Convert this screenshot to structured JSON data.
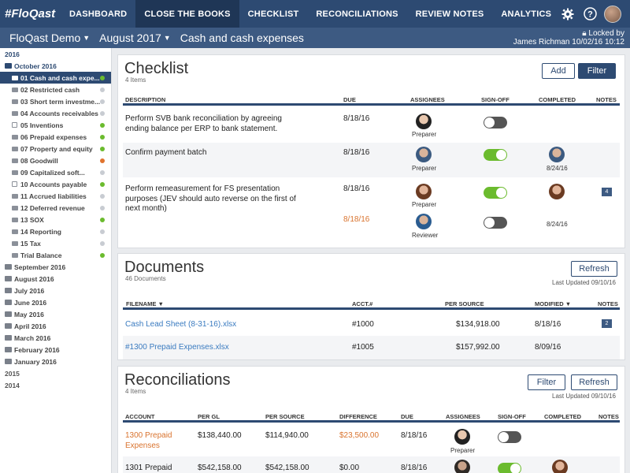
{
  "nav": {
    "logo": "#FloQast",
    "tabs": [
      "DASHBOARD",
      "CLOSE THE BOOKS",
      "CHECKLIST",
      "RECONCILIATIONS",
      "REVIEW NOTES",
      "ANALYTICS"
    ],
    "active_tab": "CLOSE THE BOOKS"
  },
  "subbar": {
    "company": "FloQast Demo",
    "period": "August 2017",
    "folder": "Cash and cash expenses",
    "locked_label": "Locked by",
    "locked_by": "James Richman 10/02/16 10:12"
  },
  "sidebar": {
    "year_current": "2016",
    "open_month": "October 2016",
    "items": [
      {
        "label": "01 Cash and cash expe...",
        "icon": "folder-icon",
        "status": "#6bbb2e"
      },
      {
        "label": "02 Restricted cash",
        "icon": "folder-icon",
        "status": "#c8ccd2"
      },
      {
        "label": "03 Short term investme...",
        "icon": "folder-icon",
        "status": "#c8ccd2"
      },
      {
        "label": "04 Accounts receivables",
        "icon": "folder-icon",
        "status": "#c8ccd2"
      },
      {
        "label": "05 Inventions",
        "icon": "lock-icon",
        "status": "#6bbb2e"
      },
      {
        "label": "06 Prepaid expenses",
        "icon": "folder-icon",
        "status": "#6bbb2e"
      },
      {
        "label": "07 Property and equity",
        "icon": "folder-icon",
        "status": "#6bbb2e"
      },
      {
        "label": "08 Goodwill",
        "icon": "folder-icon",
        "status": "#e0732e"
      },
      {
        "label": "09 Capitalized soft...",
        "icon": "folder-icon",
        "status": "#c8ccd2"
      },
      {
        "label": "10 Accounts payable",
        "icon": "lock-icon",
        "status": "#6bbb2e"
      },
      {
        "label": "11 Accrued liabilities",
        "icon": "folder-icon",
        "status": "#c8ccd2"
      },
      {
        "label": "12 Deferred revenue",
        "icon": "folder-icon",
        "status": "#c8ccd2"
      },
      {
        "label": "13 SOX",
        "icon": "folder-icon",
        "status": "#6bbb2e"
      },
      {
        "label": "14 Reporting",
        "icon": "folder-icon",
        "status": "#c8ccd2"
      },
      {
        "label": "15 Tax",
        "icon": "folder-icon",
        "status": "#c8ccd2"
      },
      {
        "label": "Trial Balance",
        "icon": "folder-icon",
        "status": "#6bbb2e"
      }
    ],
    "months": [
      "September 2016",
      "August 2016",
      "July 2016",
      "June 2016",
      "May 2016",
      "April 2016",
      "March 2016",
      "February 2016",
      "January 2016"
    ],
    "years": [
      "2015",
      "2014"
    ]
  },
  "checklist": {
    "title": "Checklist",
    "count": "4 Items",
    "add": "Add",
    "filter": "Filter",
    "headers": [
      "DESCRIPTION",
      "DUE",
      "ASSIGNEES",
      "SIGN-OFF",
      "COMPLETED",
      "NOTES"
    ],
    "rows": [
      {
        "desc": "Perform SVB bank reconciliation by agreeing ending balance per ERP to bank statement.",
        "due": "8/18/16",
        "assignee": "Preparer",
        "signoff": false,
        "completed": "",
        "notes": ""
      },
      {
        "desc": "Confirm payment batch",
        "due": "8/18/16",
        "assignee": "Preparer",
        "signoff": true,
        "completed": "8/24/16",
        "notes": ""
      },
      {
        "desc": "Perform remeasurement for FS presentation purposes (JEV should auto reverse on the first of next month)",
        "due": "8/18/16",
        "assignee": "Preparer",
        "signoff": true,
        "completed": "",
        "notes": "4",
        "sub_due": "8/18/16",
        "sub_assignee": "Reviewer",
        "sub_signoff": false,
        "sub_completed": "8/24/16"
      }
    ]
  },
  "documents": {
    "title": "Documents",
    "count": "46 Documents",
    "refresh": "Refresh",
    "updated": "Last Updated 09/10/16",
    "headers": [
      "FILENAME",
      "ACCT.#",
      "PER SOURCE",
      "MODIFIED",
      "NOTES"
    ],
    "rows": [
      {
        "file": "Cash Lead Sheet (8-31-16).xlsx",
        "acct": "#1000",
        "source": "$134,918.00",
        "modified": "8/18/16",
        "notes": "2"
      },
      {
        "file": "#1300 Prepaid Expenses.xlsx",
        "acct": "#1005",
        "source": "$157,992.00",
        "modified": "8/09/16",
        "notes": ""
      }
    ]
  },
  "reconciliations": {
    "title": "Reconciliations",
    "count": "4 Items",
    "filter": "Filter",
    "refresh": "Refresh",
    "updated": "Last Updated 09/10/16",
    "headers": [
      "ACCOUNT",
      "PER GL",
      "PER SOURCE",
      "DIFFERENCE",
      "DUE",
      "ASSIGNEES",
      "SIGN-OFF",
      "COMPLETED",
      "NOTES"
    ],
    "rows": [
      {
        "account": "1300 Prepaid Expenses",
        "gl": "$138,440.00",
        "source": "$114,940.00",
        "diff": "$23,500.00",
        "due": "8/18/16",
        "assignee": "Preparer",
        "signoff": false
      },
      {
        "account": "1301 Prepaid",
        "gl": "$542,158.00",
        "source": "$542,158.00",
        "diff": "$0.00",
        "due": "8/18/16",
        "assignee": "",
        "signoff": true
      }
    ]
  }
}
